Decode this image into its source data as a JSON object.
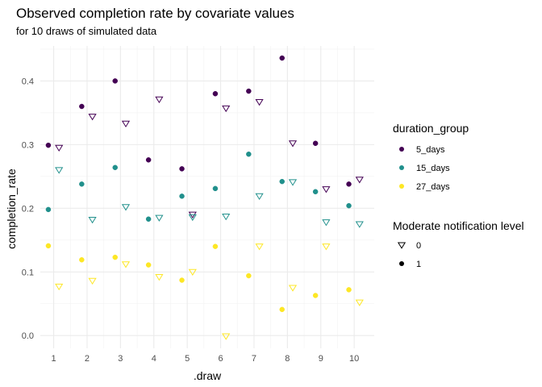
{
  "chart_data": {
    "type": "scatter",
    "title": "Observed completion rate by covariate values",
    "subtitle": "for 10 draws of simulated data",
    "xlabel": ".draw",
    "ylabel": "completion_rate",
    "xlim": [
      0.6,
      10.6
    ],
    "ylim": [
      -0.02,
      0.455
    ],
    "x_ticks": [
      "1",
      "2",
      "3",
      "4",
      "5",
      "6",
      "7",
      "8",
      "9",
      "10"
    ],
    "y_ticks": [
      "0.0",
      "0.1",
      "0.2",
      "0.3",
      "0.4"
    ],
    "grid": true,
    "legend_position": "right",
    "color_legend": {
      "title": "duration_group",
      "items": [
        {
          "label": "5_days",
          "color": "#440154"
        },
        {
          "label": "15_days",
          "color": "#21908C"
        },
        {
          "label": "27_days",
          "color": "#FDE725"
        }
      ]
    },
    "shape_legend": {
      "title": "Moderate notification level",
      "items": [
        {
          "label": "0",
          "shape": "triangle-down-open"
        },
        {
          "label": "1",
          "shape": "circle-filled"
        }
      ]
    },
    "series": [
      {
        "name": "5_days",
        "moderate": "1",
        "color": "#440154",
        "shape": "circle-filled",
        "points": [
          [
            1,
            0.299
          ],
          [
            2,
            0.36
          ],
          [
            3,
            0.4
          ],
          [
            4,
            0.276
          ],
          [
            5,
            0.262
          ],
          [
            6,
            0.38
          ],
          [
            7,
            0.384
          ],
          [
            8,
            0.436
          ],
          [
            9,
            0.302
          ],
          [
            10,
            0.238
          ]
        ]
      },
      {
        "name": "5_days",
        "moderate": "0",
        "color": "#440154",
        "shape": "triangle-down-open",
        "points": [
          [
            1,
            0.295
          ],
          [
            2,
            0.344
          ],
          [
            3,
            0.333
          ],
          [
            4,
            0.371
          ],
          [
            5,
            0.19
          ],
          [
            6,
            0.357
          ],
          [
            7,
            0.367
          ],
          [
            8,
            0.302
          ],
          [
            9,
            0.23
          ],
          [
            10,
            0.245
          ]
        ]
      },
      {
        "name": "15_days",
        "moderate": "1",
        "color": "#21908C",
        "shape": "circle-filled",
        "points": [
          [
            1,
            0.198
          ],
          [
            2,
            0.238
          ],
          [
            3,
            0.264
          ],
          [
            4,
            0.183
          ],
          [
            5,
            0.219
          ],
          [
            6,
            0.231
          ],
          [
            7,
            0.285
          ],
          [
            8,
            0.242
          ],
          [
            9,
            0.226
          ],
          [
            10,
            0.204
          ]
        ]
      },
      {
        "name": "15_days",
        "moderate": "0",
        "color": "#21908C",
        "shape": "triangle-down-open",
        "points": [
          [
            1,
            0.26
          ],
          [
            2,
            0.182
          ],
          [
            3,
            0.202
          ],
          [
            4,
            0.185
          ],
          [
            5,
            0.186
          ],
          [
            6,
            0.187
          ],
          [
            7,
            0.219
          ],
          [
            8,
            0.241
          ],
          [
            9,
            0.178
          ],
          [
            10,
            0.175
          ]
        ]
      },
      {
        "name": "27_days",
        "moderate": "1",
        "color": "#FDE725",
        "shape": "circle-filled",
        "points": [
          [
            1,
            0.141
          ],
          [
            2,
            0.119
          ],
          [
            3,
            0.123
          ],
          [
            4,
            0.111
          ],
          [
            5,
            0.087
          ],
          [
            6,
            0.14
          ],
          [
            7,
            0.094
          ],
          [
            8,
            0.041
          ],
          [
            9,
            0.063
          ],
          [
            10,
            0.072
          ]
        ]
      },
      {
        "name": "27_days",
        "moderate": "0",
        "color": "#FDE725",
        "shape": "triangle-down-open",
        "points": [
          [
            1,
            0.077
          ],
          [
            2,
            0.086
          ],
          [
            3,
            0.112
          ],
          [
            4,
            0.092
          ],
          [
            5,
            0.1
          ],
          [
            6,
            -0.001
          ],
          [
            7,
            0.14
          ],
          [
            8,
            0.075
          ],
          [
            9,
            0.14
          ],
          [
            10,
            0.052
          ]
        ]
      }
    ]
  }
}
